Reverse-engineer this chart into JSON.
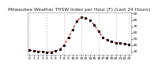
{
  "title": "Milwaukee Weather THSW Index per Hour (F) (Last 24 Hours)",
  "hours": [
    0,
    1,
    2,
    3,
    4,
    5,
    6,
    7,
    8,
    9,
    10,
    11,
    12,
    13,
    14,
    15,
    16,
    17,
    18,
    19,
    20,
    21,
    22,
    23
  ],
  "values": [
    32,
    31,
    30,
    30,
    29,
    29,
    31,
    33,
    40,
    52,
    65,
    78,
    85,
    83,
    80,
    72,
    62,
    52,
    48,
    46,
    44,
    43,
    42,
    41
  ],
  "line_color": "#dd0000",
  "marker_color": "#111111",
  "background_color": "#ffffff",
  "grid_color": "#aaaaaa",
  "ylim": [
    25,
    92
  ],
  "yticks": [
    30,
    40,
    50,
    60,
    70,
    80,
    90
  ],
  "ytick_labels": [
    "30",
    "40",
    "50",
    "60",
    "70",
    "80",
    "90"
  ],
  "title_fontsize": 4.2,
  "tick_fontsize": 3.2,
  "vgrid_positions": [
    0,
    4,
    8,
    12,
    16,
    20,
    23
  ]
}
